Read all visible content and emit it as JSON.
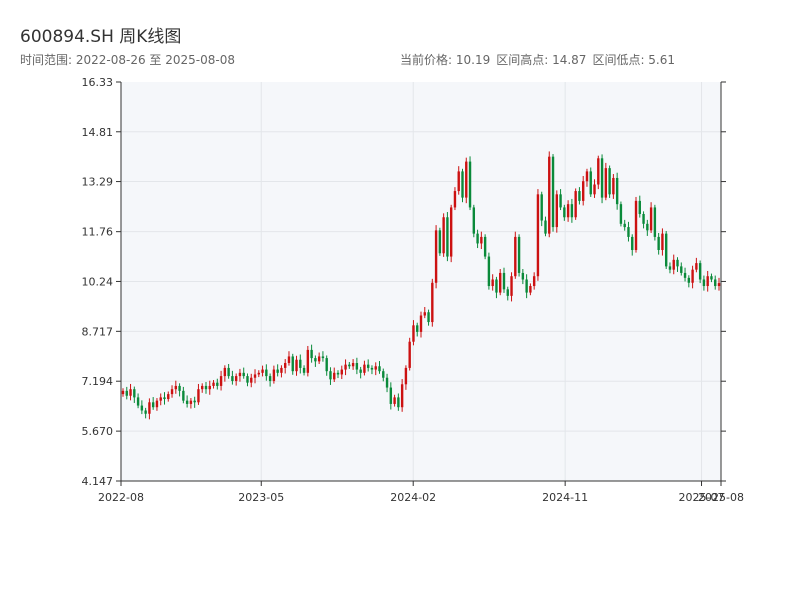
{
  "header": {
    "title": "600894.SH 周K线图",
    "range_text": "时间范围: 2022-08-26 至 2025-08-08",
    "price_text": "当前价格: 10.19",
    "high_text": "区间高点: 14.87",
    "low_text": "区间低点: 5.61"
  },
  "colors": {
    "up": "#cc1111",
    "down": "#0a8a3a",
    "plot_bg": "#f5f7fa",
    "grid": "#e3e6ea",
    "axis": "#333333"
  },
  "chart_data": {
    "type": "candlestick",
    "title": "600894.SH 周K线图",
    "xlabel": "",
    "ylabel": "",
    "ylim": [
      4.147,
      16.33
    ],
    "y_ticks": [
      "4.147",
      "5.670",
      "7.194",
      "8.717",
      "10.24",
      "11.76",
      "13.29",
      "14.81",
      "16.33"
    ],
    "x_range": [
      "2022-08-26",
      "2025-08-08"
    ],
    "x_ticks": [
      {
        "date": "2022-08-26",
        "label": "2022-08"
      },
      {
        "date": "2023-05-05",
        "label": "2023-05"
      },
      {
        "date": "2024-02-02",
        "label": "2024-02"
      },
      {
        "date": "2024-11-01",
        "label": "2024-11"
      },
      {
        "date": "2025-07-04",
        "label": "2025-07"
      },
      {
        "date": "2025-08-08",
        "label": "2025-08"
      }
    ],
    "grid": true,
    "current_price": 10.19,
    "range_high": 14.87,
    "range_low": 5.61,
    "series": [
      {
        "close": [
          6.9,
          6.75,
          6.95,
          6.7,
          6.45,
          6.3,
          6.2,
          6.55,
          6.4,
          6.6,
          6.7,
          6.65,
          6.8,
          6.95,
          7.05,
          6.9,
          6.6,
          6.5,
          6.6,
          6.55,
          6.95,
          7.05,
          6.95,
          7.05,
          7.15,
          7.05,
          7.35,
          7.6,
          7.35,
          7.2,
          7.35,
          7.45,
          7.35,
          7.15,
          7.3,
          7.4,
          7.45,
          7.55,
          7.35,
          7.2,
          7.55,
          7.45,
          7.6,
          7.75,
          7.95,
          7.5,
          7.85,
          7.6,
          7.45,
          8.15,
          7.9,
          7.8,
          7.95,
          7.9,
          7.5,
          7.25,
          7.45,
          7.4,
          7.55,
          7.7,
          7.65,
          7.75,
          7.55,
          7.45,
          7.7,
          7.6,
          7.55,
          7.65,
          7.5,
          7.3,
          7.0,
          6.5,
          6.7,
          6.4,
          7.1,
          7.6,
          8.4,
          8.9,
          8.7,
          9.2,
          9.3,
          9.0,
          10.2,
          11.8,
          11.1,
          12.2,
          11.0,
          12.5,
          13.0,
          13.6,
          12.8,
          13.9,
          12.5,
          11.7,
          11.4,
          11.6,
          11.0,
          10.1,
          10.3,
          9.9,
          10.5,
          10.0,
          9.8,
          10.4,
          11.6,
          10.5,
          10.3,
          9.9,
          10.1,
          10.4,
          12.9,
          12.1,
          11.7,
          14.05,
          11.9,
          12.9,
          12.5,
          12.2,
          12.6,
          12.2,
          13.0,
          12.7,
          13.3,
          13.6,
          12.9,
          13.2,
          14.0,
          12.8,
          13.7,
          12.9,
          13.4,
          12.6,
          12.0,
          11.9,
          11.6,
          11.2,
          12.7,
          12.3,
          12.0,
          11.8,
          12.5,
          11.6,
          11.2,
          11.7,
          10.7,
          10.6,
          10.9,
          10.7,
          10.5,
          10.35,
          10.2,
          10.6,
          10.8,
          10.3,
          10.1,
          10.4,
          10.3,
          10.1,
          10.19
        ]
      }
    ]
  }
}
